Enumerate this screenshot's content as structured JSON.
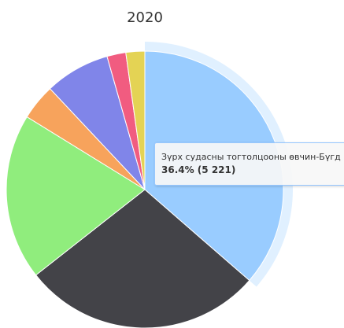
{
  "chart_data": {
    "type": "pie",
    "title": "2020",
    "slices": [
      {
        "label": "Зүрх судасны тогтолцооны өвчин-Бүгд",
        "value": 36.4,
        "count": "5 221",
        "color": "#99ccff",
        "highlighted": true
      },
      {
        "label": "",
        "value": 28.0,
        "color": "#434348"
      },
      {
        "label": "",
        "value": 19.4,
        "color": "#90ed7d"
      },
      {
        "label": "",
        "value": 4.2,
        "color": "#f7a35c"
      },
      {
        "label": "",
        "value": 7.6,
        "color": "#8085e9"
      },
      {
        "label": "",
        "value": 2.2,
        "color": "#f15c80"
      },
      {
        "label": "",
        "value": 2.2,
        "color": "#e4d354"
      }
    ],
    "legend": "none"
  },
  "tooltip": {
    "name": "Зүрх судасны тогтолцооны өвчин-Бүгд",
    "value": "36.4% (5 221)"
  }
}
